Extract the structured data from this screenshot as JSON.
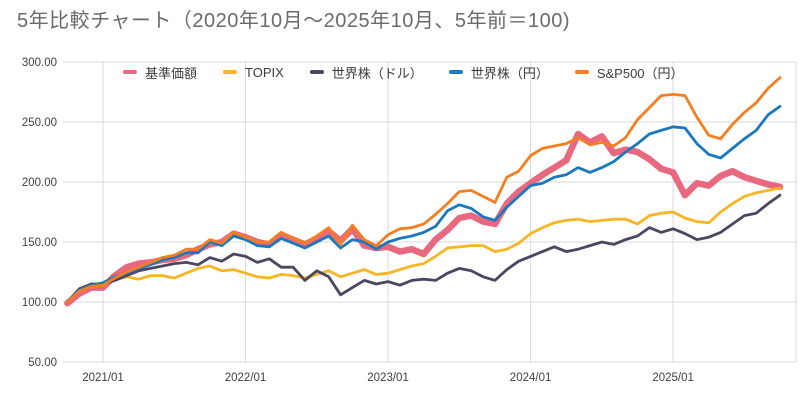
{
  "title": "5年比較チャート（2020年10月～2025年10月、5年前＝100)",
  "colors": {
    "background": "#ffffff",
    "title_text": "#6a6a6a",
    "axis_text": "#404040",
    "legend_text": "#3c3c3c",
    "gridline": "#dadada"
  },
  "chart_data": {
    "type": "line",
    "title": "5年比較チャート（2020年10月～2025年10月、5年前＝100)",
    "x_start": "2020/10",
    "x_end": "2025/10",
    "x_interval": "monthly",
    "x_tick_labels": [
      "2021/01",
      "2022/01",
      "2023/01",
      "2024/01",
      "2025/01"
    ],
    "x_tick_month_indices": [
      3,
      15,
      27,
      39,
      51
    ],
    "y_tick_values": [
      50,
      100,
      150,
      200,
      250,
      300
    ],
    "y_tick_labels": [
      "50.00",
      "100.00",
      "150.00",
      "200.00",
      "250.00",
      "300.00"
    ],
    "ylim": [
      50,
      300
    ],
    "grid": true,
    "legend_position": "top",
    "series": [
      {
        "name": "基準価額",
        "slug": "fund-nav",
        "color": "#e8697f",
        "line_width": 6.5,
        "values": [
          99,
          107,
          112,
          112,
          122,
          129,
          132,
          133,
          135,
          136,
          139,
          144,
          148,
          150,
          157,
          154,
          150,
          148,
          156,
          152,
          148,
          153,
          159,
          151,
          161,
          147,
          145,
          146,
          142,
          144,
          140,
          152,
          160,
          170,
          172,
          167,
          165,
          182,
          192,
          199,
          206,
          212,
          218,
          240,
          233,
          238,
          224,
          227,
          225,
          219,
          211,
          208,
          189,
          199,
          197,
          205,
          209,
          204,
          201,
          198,
          196
        ]
      },
      {
        "name": "TOPIX",
        "slug": "topix",
        "color": "#fbb524",
        "line_width": 2.8,
        "values": [
          100,
          110,
          113,
          114,
          119,
          121,
          119,
          122,
          122,
          120,
          124,
          128,
          130,
          126,
          127,
          124,
          121,
          120,
          123,
          122,
          120,
          123,
          126,
          121,
          124,
          127,
          123,
          124,
          127,
          130,
          132,
          138,
          145,
          146,
          147,
          147,
          142,
          144,
          149,
          157,
          162,
          166,
          168,
          169,
          167,
          168,
          169,
          169,
          165,
          172,
          174,
          175,
          170,
          167,
          166,
          175,
          182,
          188,
          191,
          193,
          195
        ]
      },
      {
        "name": "世界株（ドル）",
        "slug": "world-stocks-usd",
        "color": "#4d4661",
        "line_width": 2.8,
        "values": [
          100,
          111,
          115,
          115,
          118,
          122,
          126,
          128,
          130,
          132,
          133,
          131,
          137,
          134,
          140,
          138,
          133,
          136,
          129,
          129,
          118,
          126,
          121,
          106,
          112,
          118,
          115,
          117,
          114,
          118,
          119,
          118,
          124,
          128,
          126,
          121,
          118,
          127,
          134,
          138,
          142,
          146,
          142,
          144,
          147,
          150,
          148,
          152,
          155,
          162,
          158,
          161,
          157,
          152,
          154,
          158,
          165,
          172,
          174,
          182,
          189
        ]
      },
      {
        "name": "世界株（円）",
        "slug": "world-stocks-jpy",
        "color": "#1b78bd",
        "line_width": 2.8,
        "values": [
          100,
          110,
          114,
          116,
          121,
          124,
          128,
          131,
          135,
          137,
          141,
          141,
          150,
          147,
          155,
          152,
          147,
          146,
          153,
          149,
          145,
          150,
          155,
          145,
          152,
          150,
          144,
          150,
          153,
          155,
          158,
          163,
          176,
          181,
          178,
          171,
          168,
          179,
          188,
          197,
          199,
          204,
          206,
          212,
          208,
          212,
          217,
          225,
          232,
          240,
          243,
          246,
          245,
          232,
          223,
          220,
          228,
          236,
          243,
          256,
          263
        ]
      },
      {
        "name": "S&P500（円）",
        "slug": "sp500-jpy",
        "color": "#f57e20",
        "line_width": 2.8,
        "values": [
          100,
          109,
          113,
          114,
          120,
          125,
          129,
          133,
          137,
          139,
          144,
          144,
          152,
          149,
          158,
          154,
          150,
          150,
          158,
          153,
          149,
          155,
          162,
          148,
          164,
          152,
          147,
          156,
          161,
          162,
          165,
          173,
          182,
          192,
          193,
          188,
          183,
          204,
          209,
          222,
          228,
          230,
          232,
          237,
          231,
          233,
          230,
          237,
          252,
          262,
          272,
          273,
          272,
          254,
          239,
          236,
          248,
          258,
          266,
          278,
          287
        ]
      }
    ]
  }
}
